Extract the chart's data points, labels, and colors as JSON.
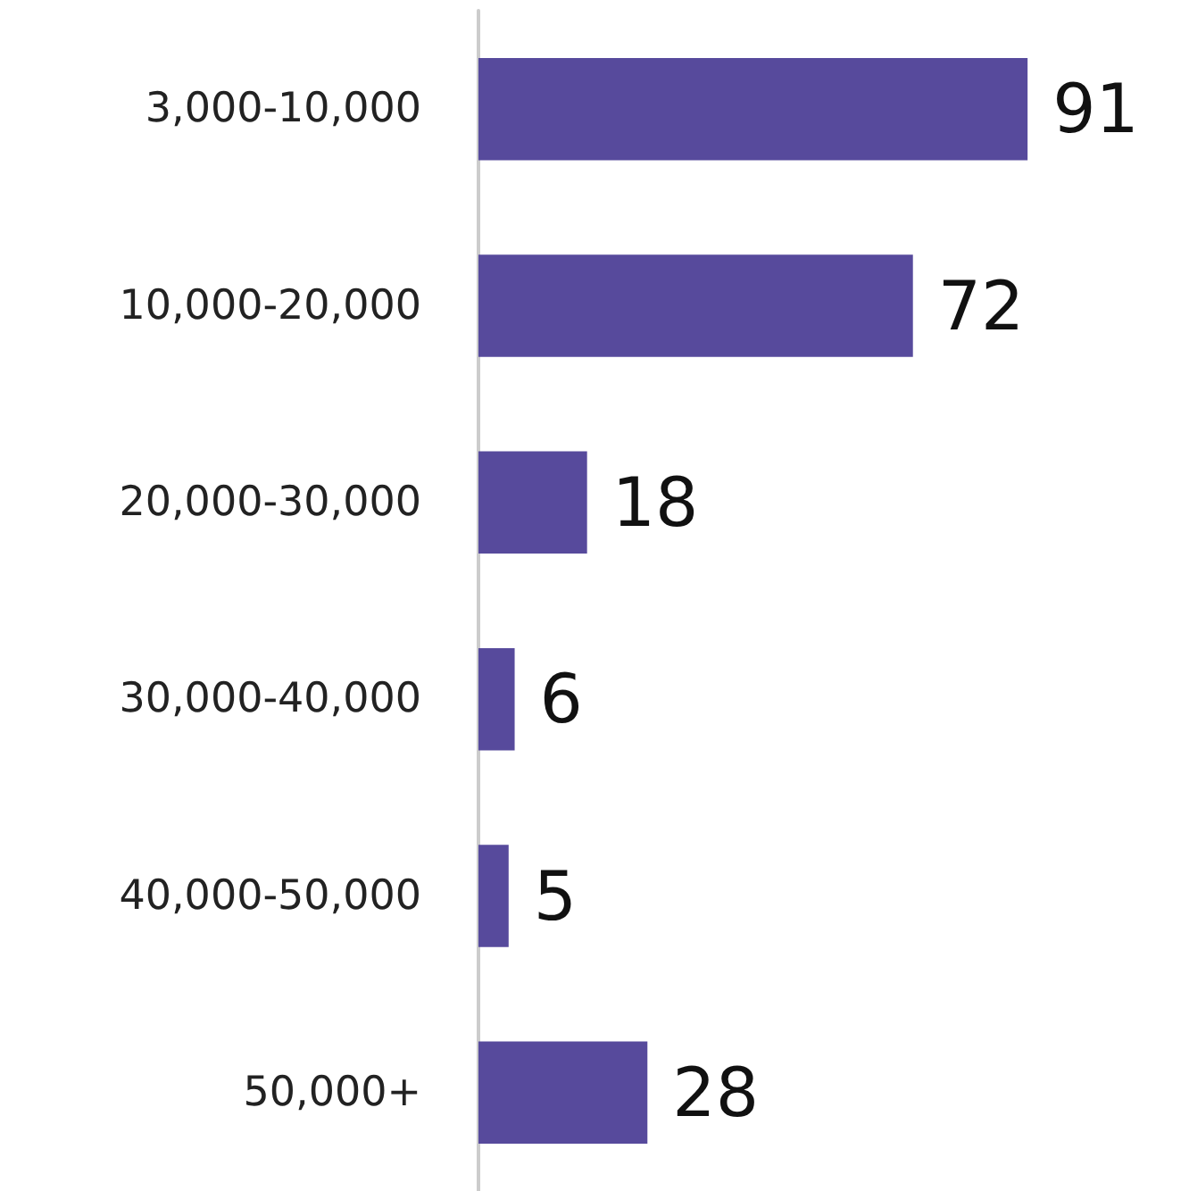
{
  "chart_data": {
    "type": "bar",
    "orientation": "horizontal",
    "categories": [
      "3,000-10,000",
      "10,000-20,000",
      "20,000-30,000",
      "30,000-40,000",
      "40,000-50,000",
      "50,000+"
    ],
    "values": [
      91,
      72,
      18,
      6,
      5,
      28
    ],
    "color": "#574a9c",
    "data_labels": true
  }
}
